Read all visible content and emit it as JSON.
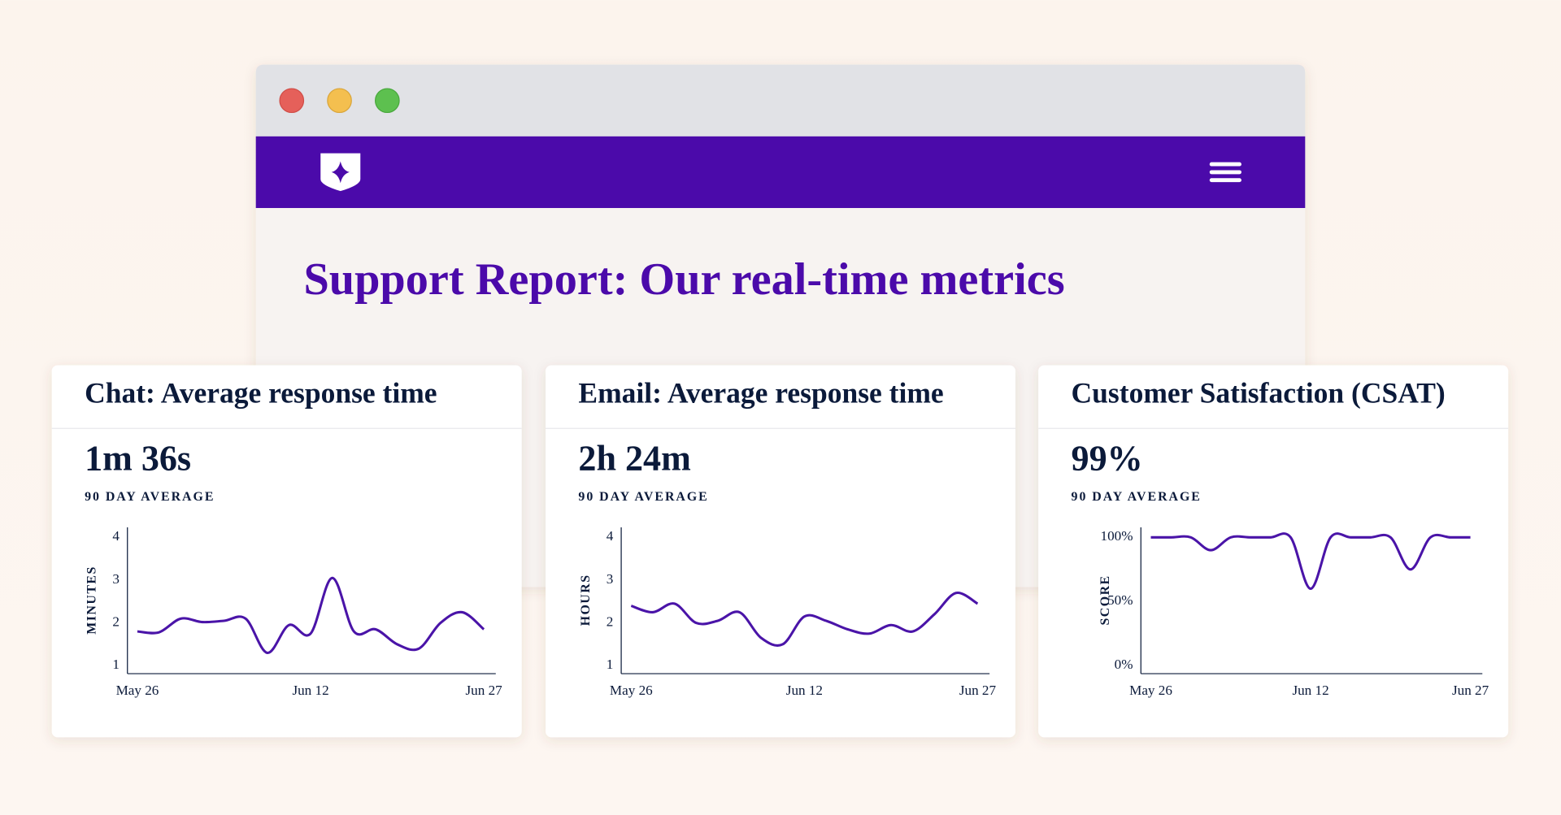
{
  "page": {
    "title": "Support Report: Our real-time metrics"
  },
  "chart_data": [
    {
      "type": "line",
      "title": "Chat: Average response time",
      "headline": "1m 36s",
      "headline_caption": "90 DAY AVERAGE",
      "y_label": "MINUTES",
      "categories": [
        "May 26",
        null,
        null,
        null,
        null,
        null,
        null,
        null,
        "Jun 12",
        null,
        null,
        null,
        null,
        null,
        null,
        null,
        "Jun 27"
      ],
      "values": [
        1.8,
        1.78,
        2.1,
        2.02,
        2.05,
        2.1,
        1.3,
        1.95,
        1.75,
        3.05,
        1.8,
        1.85,
        1.5,
        1.4,
        2.0,
        2.25,
        1.85
      ],
      "color": "#4a14a8",
      "ylim": [
        1,
        4
      ],
      "yticks": [
        1,
        2,
        3,
        4
      ]
    },
    {
      "type": "line",
      "title": "Email: Average response time",
      "headline": "2h 24m",
      "headline_caption": "90 DAY AVERAGE",
      "y_label": "HOURS",
      "categories": [
        "May 26",
        null,
        null,
        null,
        null,
        null,
        null,
        null,
        "Jun 12",
        null,
        null,
        null,
        null,
        null,
        null,
        null,
        "Jun 27"
      ],
      "values": [
        2.4,
        2.25,
        2.45,
        2.0,
        2.05,
        2.25,
        1.65,
        1.5,
        2.15,
        2.05,
        1.85,
        1.75,
        1.95,
        1.8,
        2.2,
        2.7,
        2.45
      ],
      "color": "#4a14a8",
      "ylim": [
        1,
        4
      ],
      "yticks": [
        1,
        2,
        3,
        4
      ]
    },
    {
      "type": "line",
      "title": "Customer Satisfaction (CSAT)",
      "headline": "99%",
      "headline_caption": "90 DAY AVERAGE",
      "y_label": "SCORE",
      "categories": [
        "May 26",
        null,
        null,
        null,
        null,
        null,
        null,
        null,
        "Jun 12",
        null,
        null,
        null,
        null,
        null,
        null,
        null,
        "Jun 27"
      ],
      "values": [
        100,
        100,
        100,
        90,
        100,
        100,
        100,
        100,
        60,
        100,
        100,
        100,
        100,
        75,
        100,
        100,
        100
      ],
      "color": "#4a14a8",
      "ylim": [
        0,
        100
      ],
      "yticks": [
        {
          "value": 0,
          "label": "0%"
        },
        {
          "value": 50,
          "label": "50%"
        },
        {
          "value": 100,
          "label": "100%"
        }
      ]
    }
  ]
}
